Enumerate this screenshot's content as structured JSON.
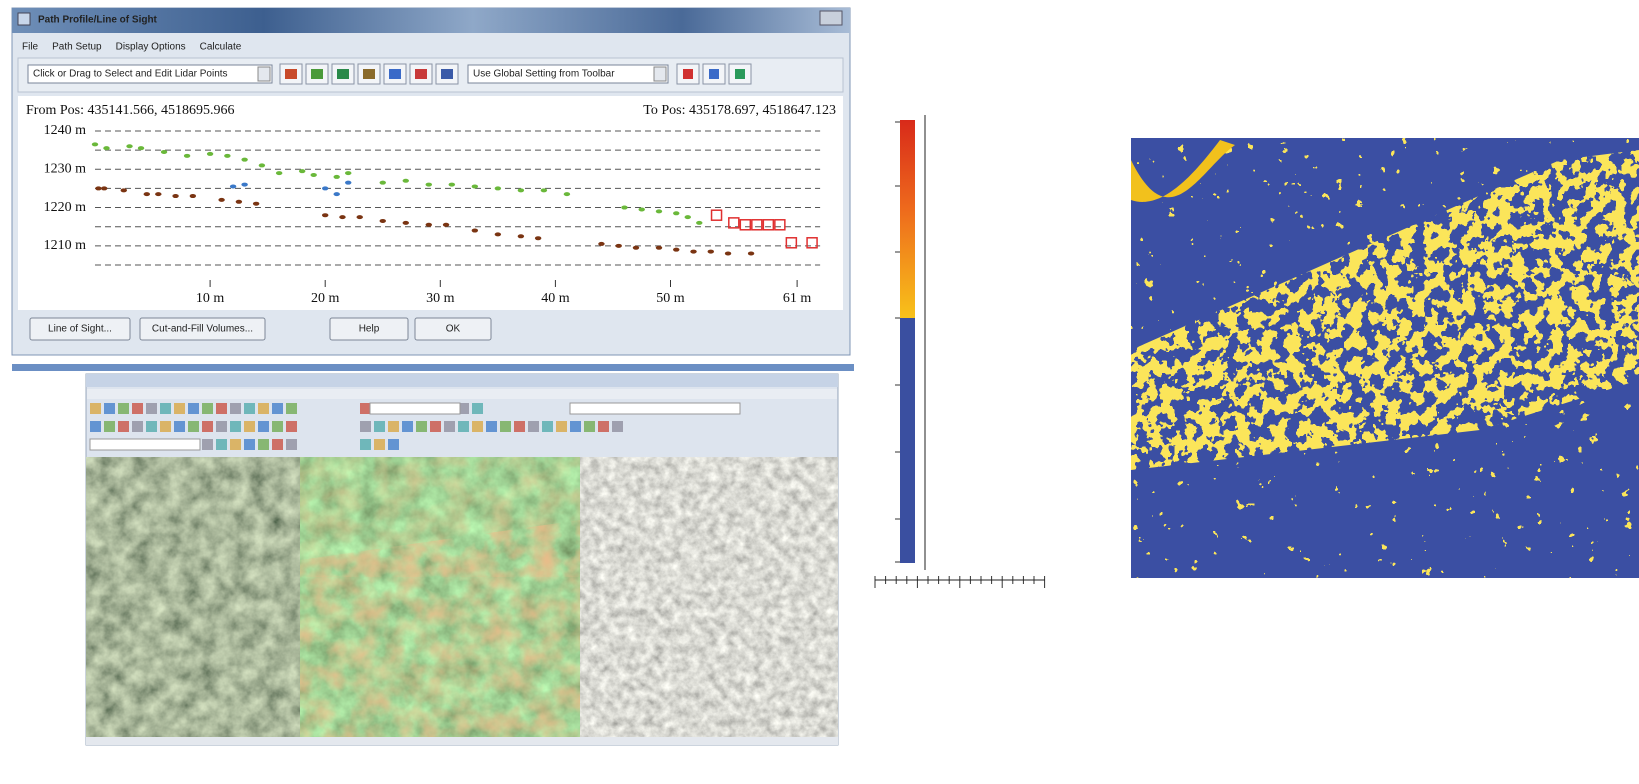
{
  "profile_window": {
    "title": "Path Profile/Line of Sight",
    "menu": [
      "File",
      "Path Setup",
      "Display Options",
      "Calculate"
    ],
    "toolbar": {
      "edit_mode": "Click or Drag to Select and Edit Lidar Points",
      "setting": "Use Global Setting from Toolbar"
    },
    "from_pos": "From Pos: 435141.566, 4518695.966",
    "to_pos": "To Pos: 435178.697, 4518647.123",
    "chart_data": {
      "type": "scatter",
      "xlim": [
        0,
        63
      ],
      "ylim": [
        1205,
        1242
      ],
      "xticks": [
        {
          "value": 10,
          "label": "10 m"
        },
        {
          "value": 20,
          "label": "20 m"
        },
        {
          "value": 30,
          "label": "30 m"
        },
        {
          "value": 40,
          "label": "40 m"
        },
        {
          "value": 50,
          "label": "50 m"
        },
        {
          "value": 61,
          "label": "61 m"
        }
      ],
      "yticks": [
        {
          "value": 1240,
          "label": "1240 m"
        },
        {
          "value": 1230,
          "label": "1230 m"
        },
        {
          "value": 1220,
          "label": "1220 m"
        },
        {
          "value": 1210,
          "label": "1210 m"
        }
      ],
      "ygrid": [
        1205,
        1210,
        1215,
        1220,
        1225,
        1230,
        1235,
        1240
      ],
      "series": [
        {
          "color": "#6ab83a",
          "marker": "dot",
          "x": [
            0,
            1,
            3,
            4,
            6,
            8,
            10,
            11.5,
            13,
            14.5,
            16,
            18,
            19,
            21,
            22,
            25,
            27,
            29,
            31,
            33,
            35,
            37,
            39,
            41,
            46,
            47.5,
            49,
            50.5,
            51.5,
            52.5
          ],
          "values": [
            1236.5,
            1235.5,
            1236,
            1235.5,
            1234.5,
            1233.5,
            1234,
            1233.5,
            1232.5,
            1231,
            1229,
            1229.5,
            1228.5,
            1228,
            1229,
            1226.5,
            1227,
            1226,
            1226,
            1225.5,
            1225,
            1224.5,
            1224.5,
            1223.5,
            1220,
            1219.5,
            1219,
            1218.5,
            1217.5,
            1216
          ]
        },
        {
          "color": "#7a3412",
          "marker": "dot",
          "x": [
            0.3,
            0.8,
            2.5,
            4.5,
            5.5,
            7,
            8.5,
            11,
            12.5,
            14,
            20,
            21.5,
            23,
            25,
            27,
            29,
            30.5,
            33,
            35,
            37,
            38.5,
            44,
            45.5,
            47,
            49,
            50.5,
            52,
            53.5,
            55,
            57
          ],
          "values": [
            1225,
            1225,
            1224.5,
            1223.5,
            1223.5,
            1223,
            1223,
            1222,
            1221.5,
            1221,
            1218,
            1217.5,
            1217.5,
            1216.5,
            1216,
            1215.5,
            1215.5,
            1214,
            1213,
            1212.5,
            1212,
            1210.5,
            1210,
            1209.5,
            1209.5,
            1209,
            1208.5,
            1208.5,
            1208,
            1208
          ]
        },
        {
          "color": "#3a78c8",
          "marker": "dot",
          "x": [
            12,
            13,
            20,
            21,
            22
          ],
          "values": [
            1225.5,
            1226,
            1225,
            1223.5,
            1226.5
          ]
        },
        {
          "color": "#e03030",
          "marker": "square",
          "x": [
            54,
            55.5,
            56.5,
            57.5,
            58.5,
            59.5,
            60.5,
            62.3
          ],
          "values": [
            1218,
            1216,
            1215.5,
            1215.5,
            1215.5,
            1215.5,
            1210.8,
            1210.8
          ]
        }
      ]
    },
    "buttons": [
      "Line of Sight...",
      "Cut-and-Fill Volumes...",
      "Help",
      "OK"
    ]
  }
}
